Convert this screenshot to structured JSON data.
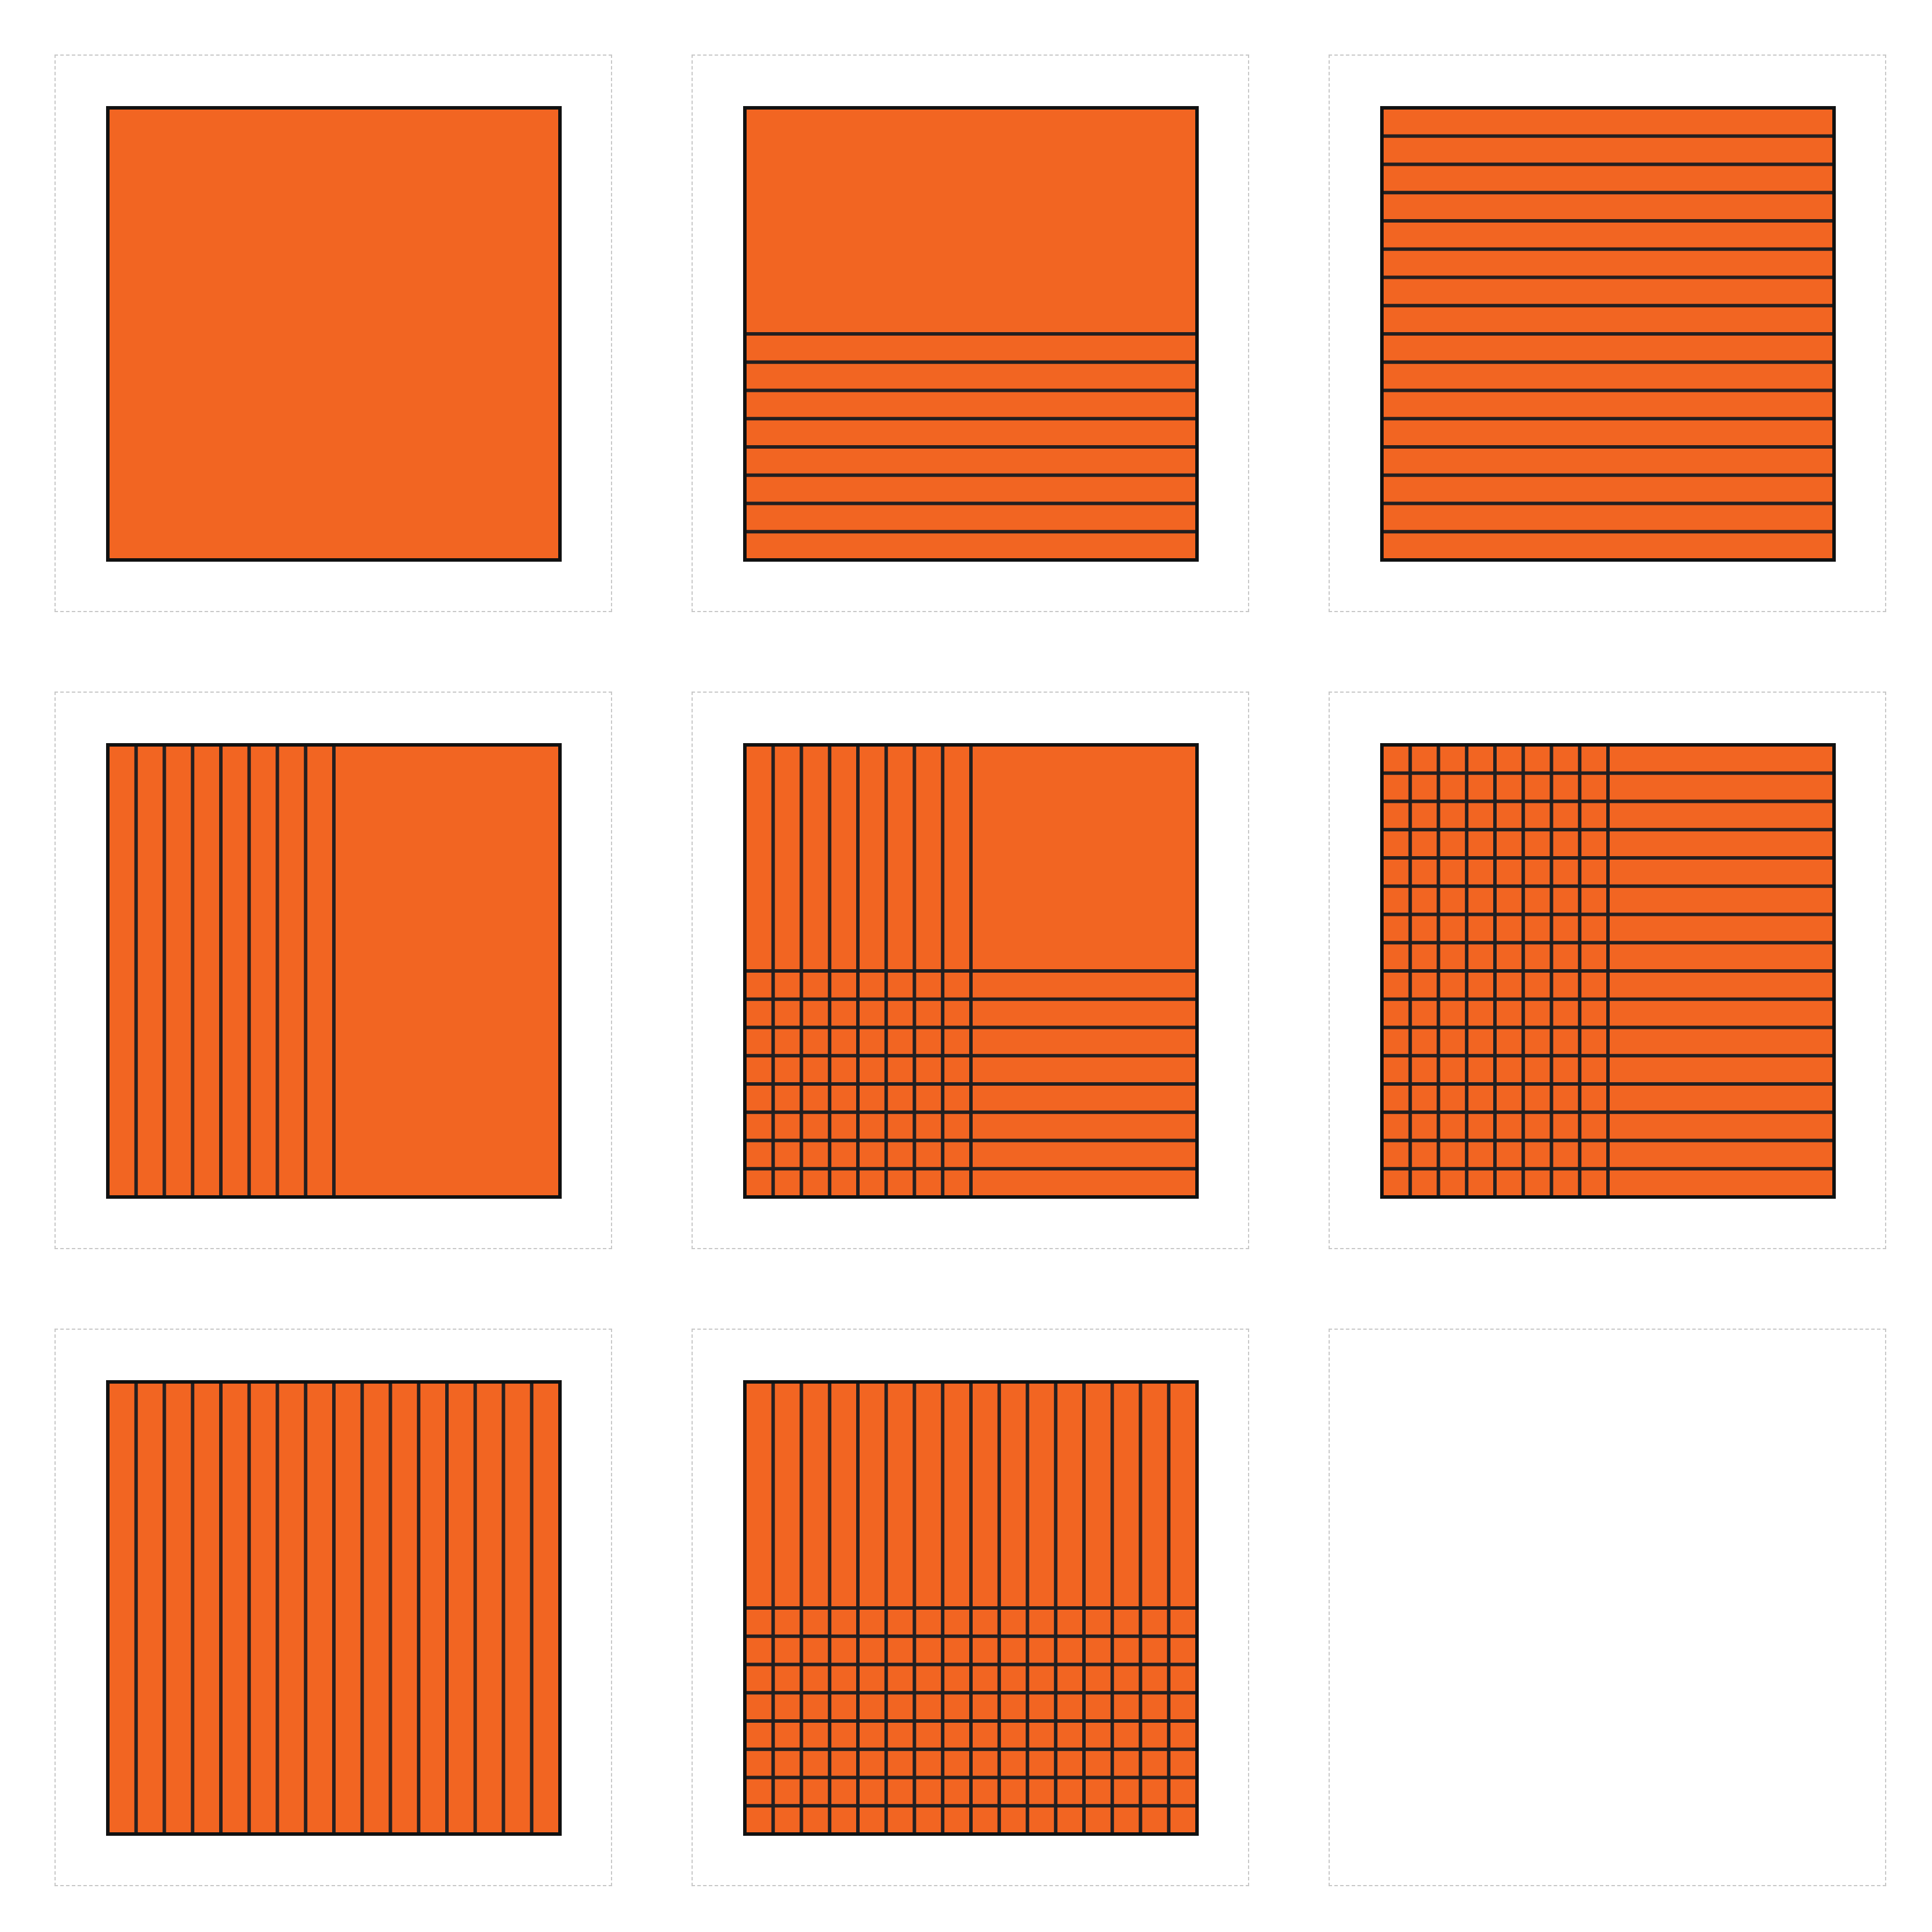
{
  "colors": {
    "fill": "#F26522",
    "line": "#231F20",
    "border": "#111111",
    "cell_border": "#c8c8c8",
    "background": "#ffffff"
  },
  "figure": {
    "rows": 3,
    "columns": 3,
    "cells": [
      {
        "vertical_lines": 0,
        "horizontal_lines": 0,
        "vertical_span": 0,
        "horizontal_span": 0
      },
      {
        "vertical_lines": 0,
        "horizontal_lines": 8,
        "vertical_span": 0,
        "horizontal_span": 0.5
      },
      {
        "vertical_lines": 0,
        "horizontal_lines": 15,
        "vertical_span": 0,
        "horizontal_span": 1
      },
      {
        "vertical_lines": 8,
        "horizontal_lines": 0,
        "vertical_span": 0.5,
        "horizontal_span": 0
      },
      {
        "vertical_lines": 8,
        "horizontal_lines": 8,
        "vertical_span": 0.5,
        "horizontal_span": 0.5
      },
      {
        "vertical_lines": 8,
        "horizontal_lines": 15,
        "vertical_span": 0.5,
        "horizontal_span": 1
      },
      {
        "vertical_lines": 15,
        "horizontal_lines": 0,
        "vertical_span": 1,
        "horizontal_span": 0
      },
      {
        "vertical_lines": 15,
        "horizontal_lines": 8,
        "vertical_span": 1,
        "horizontal_span": 0.5
      },
      {
        "empty": true
      }
    ]
  }
}
